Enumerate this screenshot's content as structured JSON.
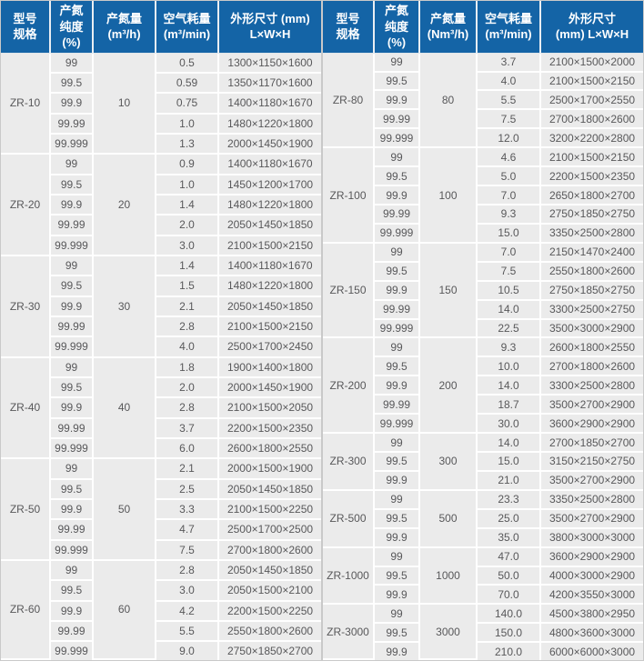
{
  "colors": {
    "header_bg": "#1464a6",
    "header_text": "#ffffff",
    "cell_bg": "#ebebeb",
    "grid_line": "#ffffff",
    "body_text": "#58585a",
    "table_border": "#c9c9c9"
  },
  "left_table": {
    "headers": [
      "型号\n规格",
      "产氮\n纯度\n(%)",
      "产氮量\n(m³/h)",
      "空气耗量\n(m³/min)",
      "外形尺寸 (mm)\nL×W×H"
    ],
    "groups": [
      {
        "model": "ZR-10",
        "flow": "10",
        "rows": [
          {
            "purity": "99",
            "air": "0.5",
            "dims": "1300×1150×1600"
          },
          {
            "purity": "99.5",
            "air": "0.59",
            "dims": "1350×1170×1600"
          },
          {
            "purity": "99.9",
            "air": "0.75",
            "dims": "1400×1180×1670"
          },
          {
            "purity": "99.99",
            "air": "1.0",
            "dims": "1480×1220×1800"
          },
          {
            "purity": "99.999",
            "air": "1.3",
            "dims": "2000×1450×1900"
          }
        ]
      },
      {
        "model": "ZR-20",
        "flow": "20",
        "rows": [
          {
            "purity": "99",
            "air": "0.9",
            "dims": "1400×1180×1670"
          },
          {
            "purity": "99.5",
            "air": "1.0",
            "dims": "1450×1200×1700"
          },
          {
            "purity": "99.9",
            "air": "1.4",
            "dims": "1480×1220×1800"
          },
          {
            "purity": "99.99",
            "air": "2.0",
            "dims": "2050×1450×1850"
          },
          {
            "purity": "99.999",
            "air": "3.0",
            "dims": "2100×1500×2150"
          }
        ]
      },
      {
        "model": "ZR-30",
        "flow": "30",
        "rows": [
          {
            "purity": "99",
            "air": "1.4",
            "dims": "1400×1180×1670"
          },
          {
            "purity": "99.5",
            "air": "1.5",
            "dims": "1480×1220×1800"
          },
          {
            "purity": "99.9",
            "air": "2.1",
            "dims": "2050×1450×1850"
          },
          {
            "purity": "99.99",
            "air": "2.8",
            "dims": "2100×1500×2150"
          },
          {
            "purity": "99.999",
            "air": "4.0",
            "dims": "2500×1700×2450"
          }
        ]
      },
      {
        "model": "ZR-40",
        "flow": "40",
        "rows": [
          {
            "purity": "99",
            "air": "1.8",
            "dims": "1900×1400×1800"
          },
          {
            "purity": "99.5",
            "air": "2.0",
            "dims": "2000×1450×1900"
          },
          {
            "purity": "99.9",
            "air": "2.8",
            "dims": "2100×1500×2050"
          },
          {
            "purity": "99.99",
            "air": "3.7",
            "dims": "2200×1500×2350"
          },
          {
            "purity": "99.999",
            "air": "6.0",
            "dims": "2600×1800×2550"
          }
        ]
      },
      {
        "model": "ZR-50",
        "flow": "50",
        "rows": [
          {
            "purity": "99",
            "air": "2.1",
            "dims": "2000×1500×1900"
          },
          {
            "purity": "99.5",
            "air": "2.5",
            "dims": "2050×1450×1850"
          },
          {
            "purity": "99.9",
            "air": "3.3",
            "dims": "2100×1500×2250"
          },
          {
            "purity": "99.99",
            "air": "4.7",
            "dims": "2500×1700×2500"
          },
          {
            "purity": "99.999",
            "air": "7.5",
            "dims": "2700×1800×2600"
          }
        ]
      },
      {
        "model": "ZR-60",
        "flow": "60",
        "rows": [
          {
            "purity": "99",
            "air": "2.8",
            "dims": "2050×1450×1850"
          },
          {
            "purity": "99.5",
            "air": "3.0",
            "dims": "2050×1500×2100"
          },
          {
            "purity": "99.9",
            "air": "4.2",
            "dims": "2200×1500×2250"
          },
          {
            "purity": "99.99",
            "air": "5.5",
            "dims": "2550×1800×2600"
          },
          {
            "purity": "99.999",
            "air": "9.0",
            "dims": "2750×1850×2700"
          }
        ]
      }
    ]
  },
  "right_table": {
    "headers": [
      "型号\n规格",
      "产氮\n纯度\n(%)",
      "产氮量\n(Nm³/h)",
      "空气耗量\n(m³/min)",
      "外形尺寸\n(mm)  L×W×H"
    ],
    "groups": [
      {
        "model": "ZR-80",
        "flow": "80",
        "rows": [
          {
            "purity": "99",
            "air": "3.7",
            "dims": "2100×1500×2000"
          },
          {
            "purity": "99.5",
            "air": "4.0",
            "dims": "2100×1500×2150"
          },
          {
            "purity": "99.9",
            "air": "5.5",
            "dims": "2500×1700×2550"
          },
          {
            "purity": "99.99",
            "air": "7.5",
            "dims": "2700×1800×2600"
          },
          {
            "purity": "99.999",
            "air": "12.0",
            "dims": "3200×2200×2800"
          }
        ]
      },
      {
        "model": "ZR-100",
        "flow": "100",
        "rows": [
          {
            "purity": "99",
            "air": "4.6",
            "dims": "2100×1500×2150"
          },
          {
            "purity": "99.5",
            "air": "5.0",
            "dims": "2200×1500×2350"
          },
          {
            "purity": "99.9",
            "air": "7.0",
            "dims": "2650×1800×2700"
          },
          {
            "purity": "99.99",
            "air": "9.3",
            "dims": "2750×1850×2750"
          },
          {
            "purity": "99.999",
            "air": "15.0",
            "dims": "3350×2500×2800"
          }
        ]
      },
      {
        "model": "ZR-150",
        "flow": "150",
        "rows": [
          {
            "purity": "99",
            "air": "7.0",
            "dims": "2150×1470×2400"
          },
          {
            "purity": "99.5",
            "air": "7.5",
            "dims": "2550×1800×2600"
          },
          {
            "purity": "99.9",
            "air": "10.5",
            "dims": "2750×1850×2750"
          },
          {
            "purity": "99.99",
            "air": "14.0",
            "dims": "3300×2500×2750"
          },
          {
            "purity": "99.999",
            "air": "22.5",
            "dims": "3500×3000×2900"
          }
        ]
      },
      {
        "model": "ZR-200",
        "flow": "200",
        "rows": [
          {
            "purity": "99",
            "air": "9.3",
            "dims": "2600×1800×2550"
          },
          {
            "purity": "99.5",
            "air": "10.0",
            "dims": "2700×1800×2600"
          },
          {
            "purity": "99.9",
            "air": "14.0",
            "dims": "3300×2500×2800"
          },
          {
            "purity": "99.99",
            "air": "18.7",
            "dims": "3500×2700×2900"
          },
          {
            "purity": "99.999",
            "air": "30.0",
            "dims": "3600×2900×2900"
          }
        ]
      },
      {
        "model": "ZR-300",
        "flow": "300",
        "rows": [
          {
            "purity": "99",
            "air": "14.0",
            "dims": "2700×1850×2700"
          },
          {
            "purity": "99.5",
            "air": "15.0",
            "dims": "3150×2150×2750"
          },
          {
            "purity": "99.9",
            "air": "21.0",
            "dims": "3500×2700×2900"
          }
        ]
      },
      {
        "model": "ZR-500",
        "flow": "500",
        "rows": [
          {
            "purity": "99",
            "air": "23.3",
            "dims": "3350×2500×2800"
          },
          {
            "purity": "99.5",
            "air": "25.0",
            "dims": "3500×2700×2900"
          },
          {
            "purity": "99.9",
            "air": "35.0",
            "dims": "3800×3000×3000"
          }
        ]
      },
      {
        "model": "ZR-1000",
        "flow": "1000",
        "rows": [
          {
            "purity": "99",
            "air": "47.0",
            "dims": "3600×2900×2900"
          },
          {
            "purity": "99.5",
            "air": "50.0",
            "dims": "4000×3000×2900"
          },
          {
            "purity": "99.9",
            "air": "70.0",
            "dims": "4200×3550×3000"
          }
        ]
      },
      {
        "model": "ZR-3000",
        "flow": "3000",
        "rows": [
          {
            "purity": "99",
            "air": "140.0",
            "dims": "4500×3800×2950"
          },
          {
            "purity": "99.5",
            "air": "150.0",
            "dims": "4800×3600×3000"
          },
          {
            "purity": "99.9",
            "air": "210.0",
            "dims": "6000×6000×3000"
          }
        ]
      }
    ]
  }
}
